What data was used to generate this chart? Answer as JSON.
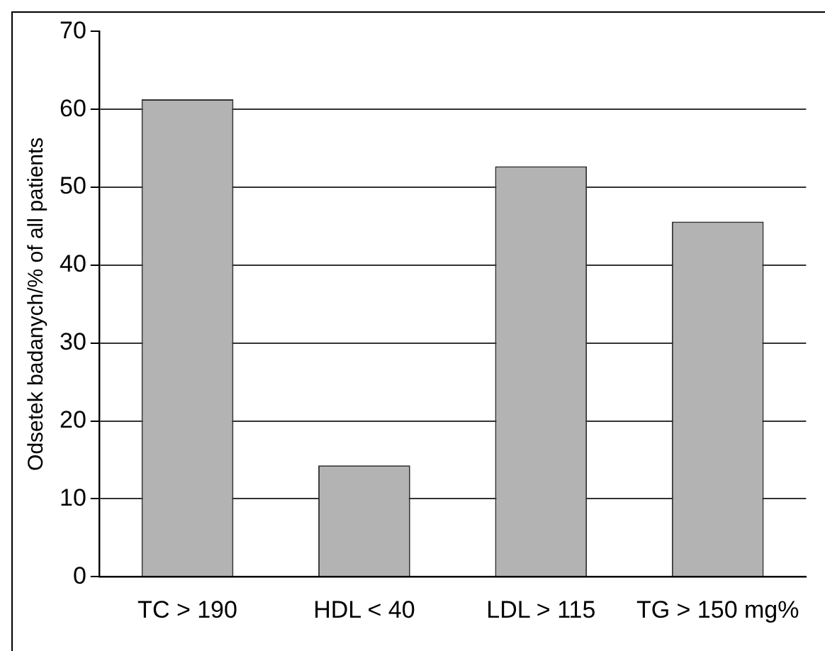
{
  "chart_data": {
    "type": "bar",
    "ylabel": "Odsetek badanych/% of all patients",
    "categories": [
      "TC > 190",
      "HDL < 40",
      "LDL > 115",
      "TG > 150 mg%"
    ],
    "values": [
      61.3,
      14.3,
      52.7,
      45.6
    ],
    "color": "#b3b3b3",
    "ylim": [
      0,
      70
    ],
    "yticks": [
      0,
      10,
      20,
      30,
      40,
      50,
      60,
      70
    ],
    "grid": "y",
    "legend": false
  }
}
